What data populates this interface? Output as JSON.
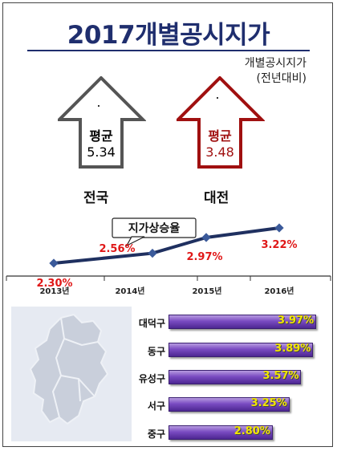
{
  "title": "2017개별공시지가",
  "note": {
    "line1": "개별공시지가",
    "line2": "(전년대비)"
  },
  "national": {
    "label": "평균",
    "value": "5.34",
    "region": "전국"
  },
  "daejeon": {
    "label": "평균",
    "value": "3.48",
    "region": "대전"
  },
  "colors": {
    "title": "#1f2e6e",
    "national_arrow": "#555555",
    "daejeon_arrow": "#a01010",
    "line": "#1f3060",
    "point_label": "#e01818",
    "bar": "#7a4bc2",
    "bar_value": "#f2e600"
  },
  "chart_data": [
    {
      "type": "line",
      "title": "지가상승율",
      "categories": [
        "2013년",
        "2014년",
        "2015년",
        "2016년"
      ],
      "series": [
        {
          "values": [
            2.3,
            2.56,
            2.97,
            3.22
          ]
        }
      ],
      "data_labels": [
        "2.30%",
        "2.56%",
        "2.97%",
        "3.22%"
      ],
      "legend": "none",
      "grid": false
    },
    {
      "type": "bar",
      "orientation": "horizontal",
      "categories": [
        "대덕구",
        "동구",
        "유성구",
        "서구",
        "중구"
      ],
      "values": [
        3.97,
        3.89,
        3.57,
        3.25,
        2.8
      ],
      "data_labels": [
        "3.97%",
        "3.89%",
        "3.57%",
        "3.25%",
        "2.80%"
      ],
      "grid": false
    }
  ]
}
